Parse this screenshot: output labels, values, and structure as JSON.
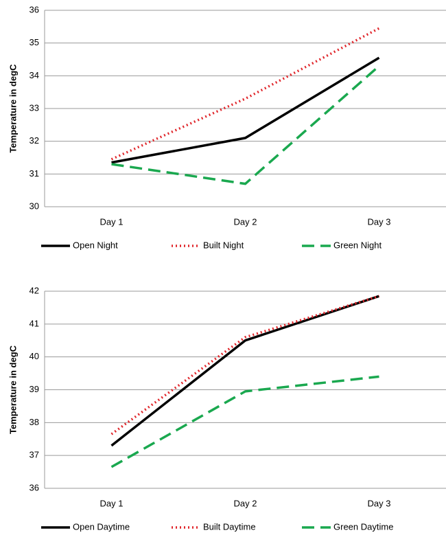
{
  "chart_data": [
    {
      "type": "line",
      "y_label": "Temperature in degC",
      "categories": [
        "Day 1",
        "Day 2",
        "Day 3"
      ],
      "ylim": [
        30,
        36
      ],
      "yticks": [
        30,
        31,
        32,
        33,
        34,
        35,
        36
      ],
      "grid": true,
      "series": [
        {
          "name": "Open Night",
          "color": "#000000",
          "dash": "solid",
          "values": [
            31.35,
            32.1,
            34.55
          ]
        },
        {
          "name": "Built Night",
          "color": "#e0262b",
          "dash": "dotted",
          "values": [
            31.45,
            33.3,
            35.45
          ]
        },
        {
          "name": "Green Night",
          "color": "#1aa84f",
          "dash": "dashed",
          "values": [
            31.3,
            30.7,
            34.3
          ]
        }
      ]
    },
    {
      "type": "line",
      "y_label": "Temperature in degC",
      "categories": [
        "Day 1",
        "Day 2",
        "Day 3"
      ],
      "ylim": [
        36,
        42
      ],
      "yticks": [
        36,
        37,
        38,
        39,
        40,
        41,
        42
      ],
      "grid": true,
      "series": [
        {
          "name": "Open Daytime",
          "color": "#000000",
          "dash": "solid",
          "values": [
            37.3,
            40.5,
            41.85
          ]
        },
        {
          "name": "Built Daytime",
          "color": "#e0262b",
          "dash": "dotted",
          "values": [
            37.65,
            40.6,
            41.85
          ]
        },
        {
          "name": "Green Daytime",
          "color": "#1aa84f",
          "dash": "dashed",
          "values": [
            36.65,
            38.95,
            39.4
          ]
        }
      ]
    }
  ]
}
